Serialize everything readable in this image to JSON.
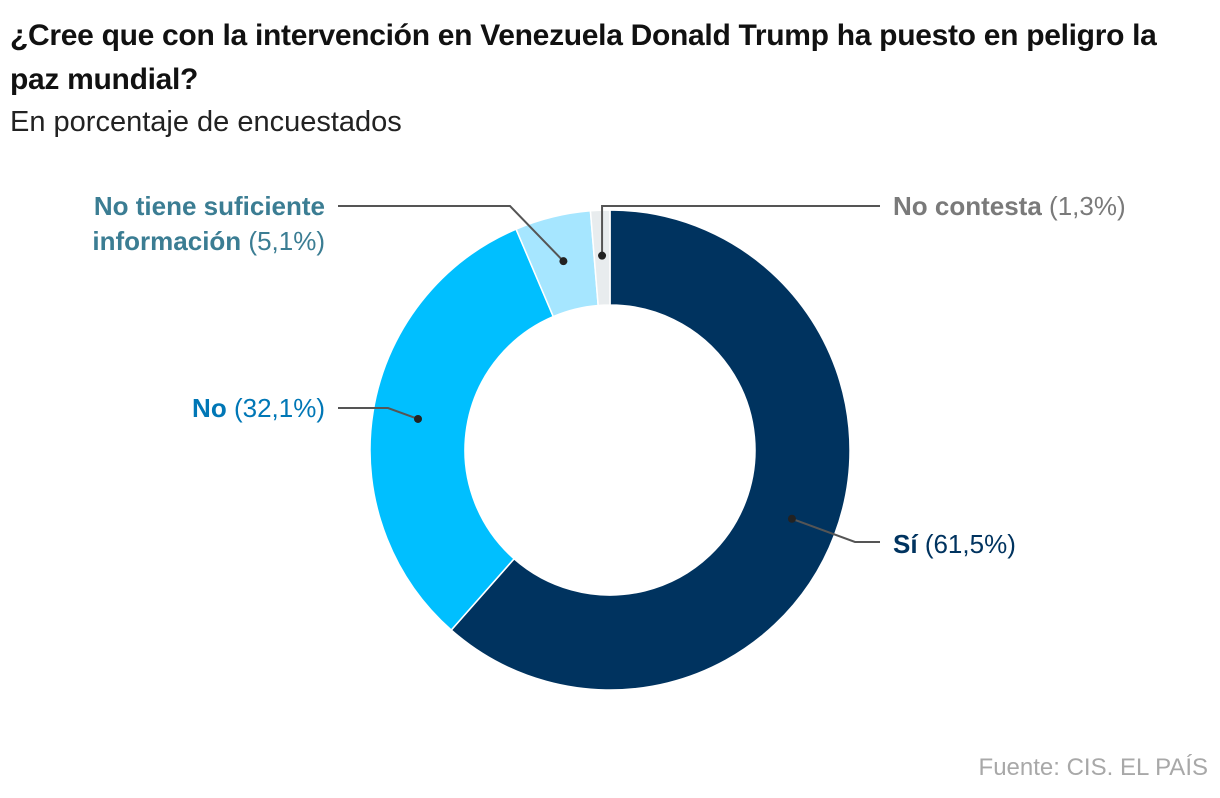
{
  "title": "¿Cree que con la intervención en Venezuela Donald Trump ha puesto en peligro la paz mundial?",
  "subtitle": "En porcentaje de encuestados",
  "source": "Fuente: CIS. EL PAÍS",
  "chart_data": {
    "type": "pie",
    "donut": true,
    "categories": [
      "Sí",
      "No",
      "No tiene suficiente información",
      "No contesta"
    ],
    "values": [
      61.5,
      32.1,
      5.1,
      1.3
    ],
    "value_labels": [
      "(61,5%)",
      "(32,1%)",
      "(5,1%)",
      "(1,3%)"
    ],
    "colors": [
      "#00335f",
      "#00bfff",
      "#a6e6ff",
      "#e8ecee"
    ],
    "label_colors": [
      "#00335f",
      "#0077b6",
      "#3b7d93",
      "#7a7a7a"
    ],
    "label_lines": {
      "si": "Sí",
      "no": "No",
      "ns1": "No tiene suficiente",
      "ns2": "información",
      "nc": "No contesta"
    }
  }
}
